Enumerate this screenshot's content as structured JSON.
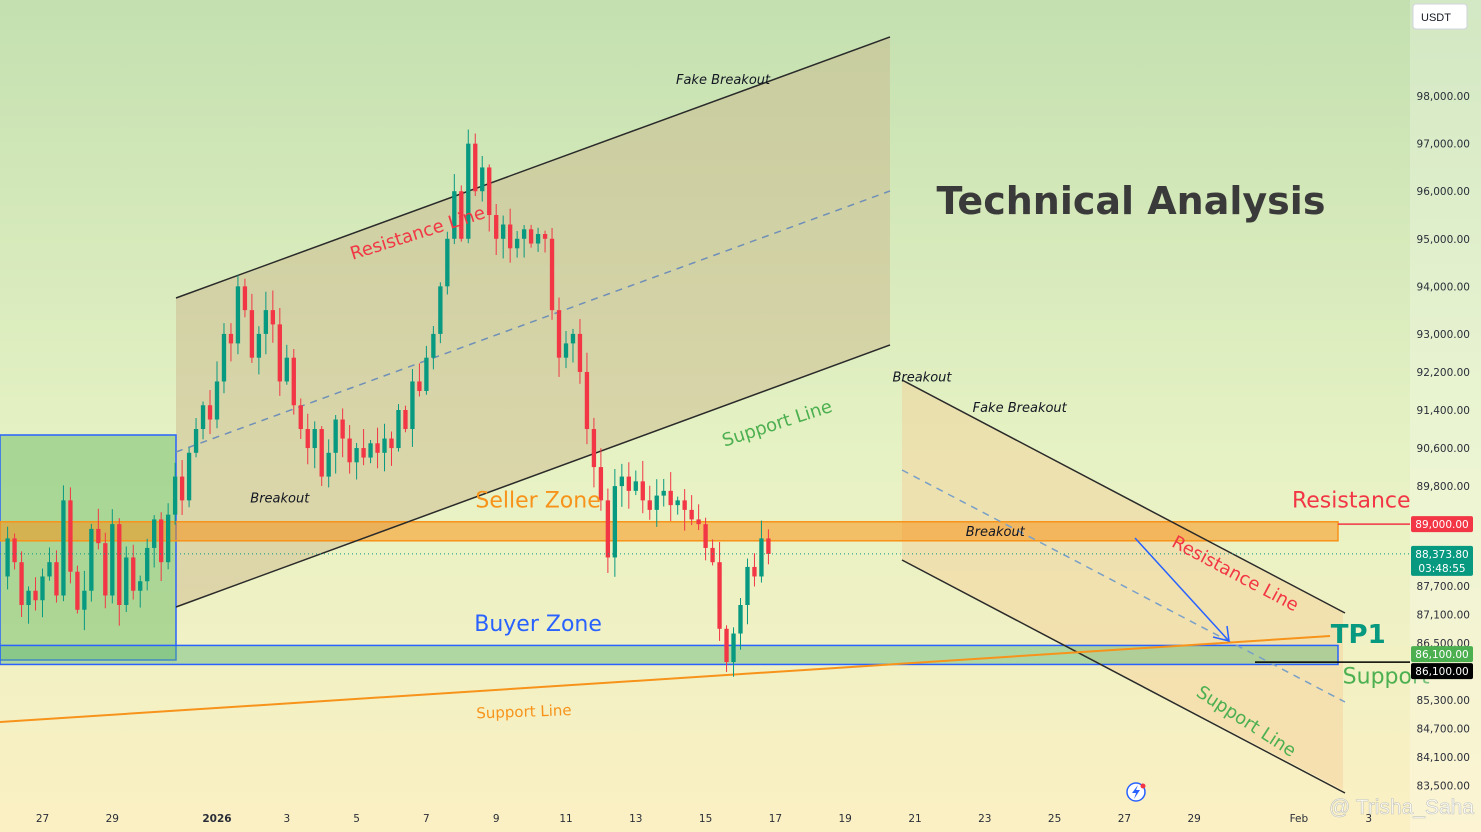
{
  "chart_data": {
    "type": "candlestick",
    "title": "Technical Analysis",
    "currency_badge": "USDT",
    "watermark": "@ Trisha_Saha",
    "y_range": [
      83200,
      99600
    ],
    "y_ticks": [
      {
        "label": "98,000.00",
        "value": 98000
      },
      {
        "label": "97,000.00",
        "value": 97000
      },
      {
        "label": "96,000.00",
        "value": 96000
      },
      {
        "label": "95,000.00",
        "value": 95000
      },
      {
        "label": "94,000.00",
        "value": 94000
      },
      {
        "label": "93,000.00",
        "value": 93000
      },
      {
        "label": "92,200.00",
        "value": 92200
      },
      {
        "label": "91,400.00",
        "value": 91400
      },
      {
        "label": "90,600.00",
        "value": 90600
      },
      {
        "label": "89,800.00",
        "value": 89800
      },
      {
        "label": "87,700.00",
        "value": 87700
      },
      {
        "label": "87,100.00",
        "value": 87100
      },
      {
        "label": "86,500.00",
        "value": 86500
      },
      {
        "label": "85,300.00",
        "value": 85300
      },
      {
        "label": "84,700.00",
        "value": 84700
      },
      {
        "label": "84,100.00",
        "value": 84100
      },
      {
        "label": "83,500.00",
        "value": 83500
      }
    ],
    "x_ticks": [
      {
        "label": "27",
        "day": -5,
        "bold": false
      },
      {
        "label": "29",
        "day": -3,
        "bold": false
      },
      {
        "label": "2026",
        "day": 0,
        "bold": true
      },
      {
        "label": "3",
        "day": 2,
        "bold": false
      },
      {
        "label": "5",
        "day": 4,
        "bold": false
      },
      {
        "label": "7",
        "day": 6,
        "bold": false
      },
      {
        "label": "9",
        "day": 8,
        "bold": false
      },
      {
        "label": "11",
        "day": 10,
        "bold": false
      },
      {
        "label": "13",
        "day": 12,
        "bold": false
      },
      {
        "label": "15",
        "day": 14,
        "bold": false
      },
      {
        "label": "17",
        "day": 16,
        "bold": false
      },
      {
        "label": "19",
        "day": 18,
        "bold": false
      },
      {
        "label": "21",
        "day": 20,
        "bold": false
      },
      {
        "label": "23",
        "day": 22,
        "bold": false
      },
      {
        "label": "25",
        "day": 24,
        "bold": false
      },
      {
        "label": "27",
        "day": 26,
        "bold": false
      },
      {
        "label": "29",
        "day": 28,
        "bold": false
      },
      {
        "label": "Feb",
        "day": 31,
        "bold": false
      },
      {
        "label": "3",
        "day": 33,
        "bold": false
      }
    ],
    "price_tags": {
      "resistance": {
        "label": "89,000.00",
        "value": 89000,
        "color": "#f23645"
      },
      "current": {
        "label": "88,373.80",
        "countdown": "03:48:55",
        "value": 88374,
        "color": "#089981"
      },
      "target": {
        "label": "86,100.00",
        "value": 86100,
        "color": "#4caf50"
      },
      "support": {
        "label": "86,100.00",
        "value": 86100,
        "color": "#000000"
      }
    },
    "candles_anchor_day": -6.2,
    "candles_day_step": 0.2,
    "candle_path": [
      87900,
      88700,
      88200,
      87300,
      87600,
      87400,
      87900,
      88200,
      87500,
      89500,
      88000,
      87200,
      87600,
      88900,
      88600,
      87500,
      89000,
      87300,
      88300,
      87600,
      87800,
      88500,
      89100,
      88200,
      89200,
      90000,
      89500,
      90500,
      91000,
      91500,
      91200,
      92000,
      93000,
      92800,
      94000,
      93500,
      92500,
      93000,
      93500,
      93200,
      92000,
      92500,
      91500,
      91000,
      90600,
      91000,
      90000,
      90500,
      91200,
      90800,
      90300,
      90600,
      90400,
      90700,
      90500,
      90800,
      90600,
      91400,
      91000,
      92000,
      91800,
      92500,
      93000,
      94000,
      95000,
      96000,
      95000,
      97000,
      96000,
      96500,
      95500,
      95000,
      95300,
      94800,
      95000,
      95200,
      94900,
      95100,
      95000,
      93500,
      92500,
      92800,
      93000,
      92200,
      91000,
      90200,
      89500,
      88300,
      89800,
      90000,
      89700,
      89900,
      89500,
      89300,
      89600,
      89700,
      89400,
      89500,
      89300,
      89100,
      89000,
      88500,
      88200,
      86800,
      86100,
      86700,
      87300,
      88100,
      87900,
      88700,
      88374
    ],
    "zones": [
      {
        "name": "Seller Zone",
        "top": 89050,
        "bottom": 88650,
        "color": "#f7931a"
      },
      {
        "name": "Buyer Zone",
        "top": 86450,
        "bottom": 86050,
        "color": "#2962ff"
      }
    ],
    "annotations": [
      {
        "text": "Fake Breakout",
        "color": "#131722",
        "day": 14.5,
        "value": 98250,
        "size": 13,
        "italic": true
      },
      {
        "text": "Fake Breakout",
        "color": "#131722",
        "day": 23.0,
        "value": 91360,
        "size": 13,
        "italic": true
      },
      {
        "text": "Breakout",
        "color": "#131722",
        "day": 1.8,
        "value": 89450,
        "size": 13,
        "italic": true
      },
      {
        "text": "Breakout",
        "color": "#131722",
        "day": 20.2,
        "value": 92000,
        "size": 13,
        "italic": true
      },
      {
        "text": "Breakout",
        "color": "#131722",
        "day": 22.3,
        "value": 88750,
        "size": 13,
        "italic": true
      },
      {
        "text": "Seller Zone",
        "color": "#f7931a",
        "day": 9.2,
        "value": 89350,
        "size": 22,
        "italic": false
      },
      {
        "text": "Buyer Zone",
        "color": "#2962ff",
        "day": 9.2,
        "value": 86750,
        "size": 22,
        "italic": false
      },
      {
        "text": "Resistance",
        "color": "#f23645",
        "day": 32.5,
        "value": 89350,
        "size": 22,
        "italic": false
      },
      {
        "text": "Support",
        "color": "#4caf50",
        "day": 33.5,
        "value": 85650,
        "size": 22,
        "italic": false
      },
      {
        "text": "TP1",
        "color": "#089981",
        "day": 32.7,
        "value": 86500,
        "size": 26,
        "italic": false,
        "bold": true
      },
      {
        "text": "Resistance Line",
        "color": "#f23645",
        "day": 5.8,
        "value": 95000,
        "size": 18,
        "italic": false,
        "rotate": -17.5
      },
      {
        "text": "Support Line",
        "color": "#4caf50",
        "day": 16.1,
        "value": 91000,
        "size": 18,
        "italic": false,
        "rotate": -18
      },
      {
        "text": "Resistance Line",
        "color": "#f23645",
        "day": 29.1,
        "value": 87850,
        "size": 18,
        "italic": false,
        "rotate": 28
      },
      {
        "text": "Support Line",
        "color": "#4caf50",
        "day": 29.4,
        "value": 84750,
        "size": 18,
        "italic": false,
        "rotate": 33
      },
      {
        "text": "Support Line",
        "color": "#f7931a",
        "day": 8.8,
        "value": 84950,
        "size": 15,
        "italic": false,
        "rotate": -2
      }
    ]
  }
}
